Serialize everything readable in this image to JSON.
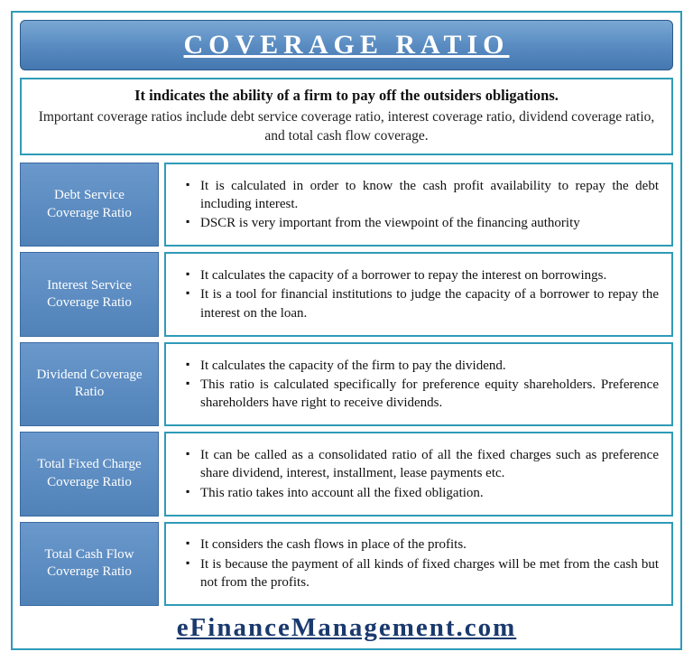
{
  "title": "COVERAGE RATIO",
  "intro": {
    "bold": "It indicates the ability of a firm to pay off the outsiders obligations.",
    "plain": "Important coverage ratios include debt service coverage ratio, interest coverage ratio, dividend coverage ratio, and total cash flow coverage."
  },
  "rows": [
    {
      "label": "Debt Service Coverage Ratio",
      "points": [
        "It is  calculated in order to know the cash profit availability to repay the debt including interest.",
        "DSCR is very important from the viewpoint of the financing authority"
      ]
    },
    {
      "label": "Interest Service Coverage Ratio",
      "points": [
        "It calculates the capacity of a borrower to repay the interest on borrowings.",
        "It is a tool for financial institutions to judge the capacity of a borrower to repay the interest on the loan."
      ]
    },
    {
      "label": "Dividend Coverage Ratio",
      "points": [
        "It calculates the capacity of the firm to pay the dividend.",
        "This ratio is calculated specifically for preference equity shareholders. Preference shareholders have right to receive dividends."
      ]
    },
    {
      "label": "Total Fixed Charge Coverage Ratio",
      "points": [
        "It can be called as a consolidated ratio of all the fixed charges such as preference share dividend, interest, installment, lease payments etc.",
        "This ratio takes into account all the fixed obligation."
      ]
    },
    {
      "label": "Total Cash Flow Coverage Ratio",
      "points": [
        "It considers the cash flows in place of the profits.",
        "It is because the payment of all kinds of fixed charges will be met from the cash but not from the profits."
      ]
    }
  ],
  "footer": "eFinanceManagement.com",
  "colors": {
    "border": "#2e9bb8",
    "header_grad_top": "#7aa8d4",
    "header_grad_bot": "#4578b0",
    "label_bg": "#5a8cc2",
    "footer_link": "#1a3a6e"
  }
}
